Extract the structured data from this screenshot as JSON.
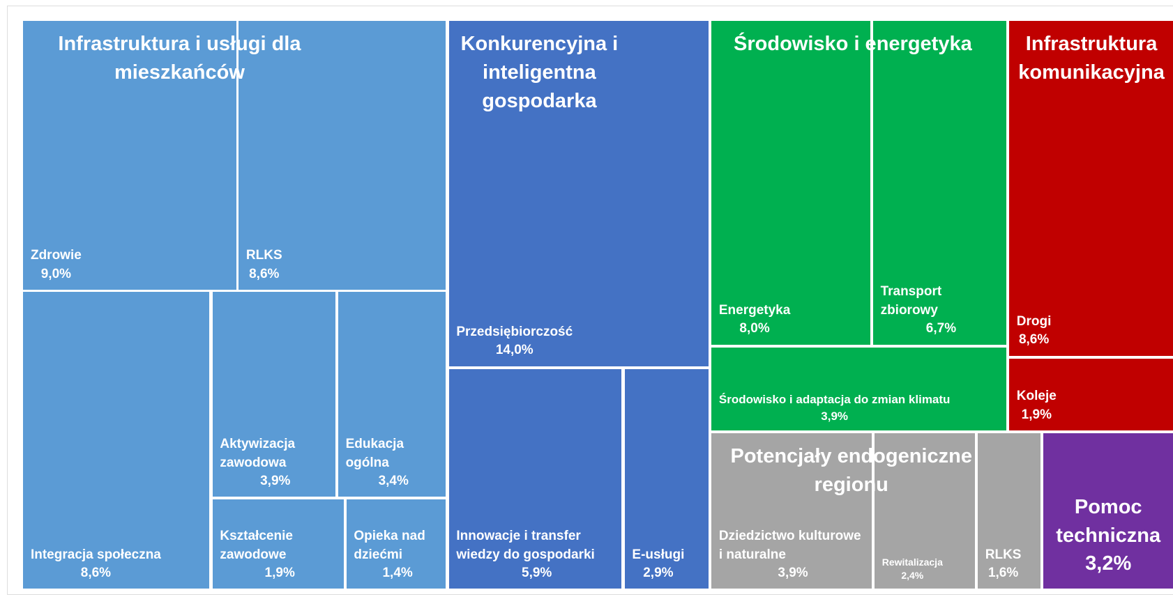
{
  "chart_data": {
    "type": "treemap",
    "groups": [
      {
        "name": "Infrastruktura i usługi dla mieszkańców",
        "color": "#5b9bd5",
        "children": [
          {
            "name": "Zdrowie",
            "value": 9.0,
            "value_label": "9,0%"
          },
          {
            "name": "RLKS",
            "value": 8.6,
            "value_label": "8,6%"
          },
          {
            "name": "Integracja społeczna",
            "value": 8.6,
            "value_label": "8,6%"
          },
          {
            "name": "Aktywizacja zawodowa",
            "value": 3.9,
            "value_label": "3,9%"
          },
          {
            "name": "Edukacja ogólna",
            "value": 3.4,
            "value_label": "3,4%"
          },
          {
            "name": "Kształcenie zawodowe",
            "value": 1.9,
            "value_label": "1,9%"
          },
          {
            "name": "Opieka nad dziećmi",
            "value": 1.4,
            "value_label": "1,4%"
          }
        ]
      },
      {
        "name": "Konkurencyjna i inteligentna gospodarka",
        "color": "#4472c4",
        "children": [
          {
            "name": "Przedsiębiorczość",
            "value": 14.0,
            "value_label": "14,0%"
          },
          {
            "name": "Innowacje i transfer wiedzy do gospodarki",
            "value": 5.9,
            "value_label": "5,9%"
          },
          {
            "name": "E-usługi",
            "value": 2.9,
            "value_label": "2,9%"
          }
        ]
      },
      {
        "name": "Środowisko i energetyka",
        "color": "#00b050",
        "children": [
          {
            "name": "Energetyka",
            "value": 8.0,
            "value_label": "8,0%"
          },
          {
            "name": "Transport zbiorowy",
            "value": 6.7,
            "value_label": "6,7%"
          },
          {
            "name": "Środowisko i adaptacja do zmian klimatu",
            "value": 3.9,
            "value_label": "3,9%"
          }
        ]
      },
      {
        "name": "Infrastruktura komunikacyjna",
        "color": "#c00000",
        "children": [
          {
            "name": "Drogi",
            "value": 8.6,
            "value_label": "8,6%"
          },
          {
            "name": "Koleje",
            "value": 1.9,
            "value_label": "1,9%"
          }
        ]
      },
      {
        "name": "Potencjały endogeniczne regionu",
        "color": "#a5a5a5",
        "children": [
          {
            "name": "Dziedzictwo kulturowe i naturalne",
            "value": 3.9,
            "value_label": "3,9%"
          },
          {
            "name": "Rewitalizacja",
            "value": 2.4,
            "value_label": "2,4%"
          },
          {
            "name": "RLKS",
            "value": 1.6,
            "value_label": "1,6%"
          }
        ]
      },
      {
        "name": "Pomoc techniczna",
        "color": "#7030a0",
        "value": 3.2,
        "value_label": "3,2%"
      }
    ]
  }
}
